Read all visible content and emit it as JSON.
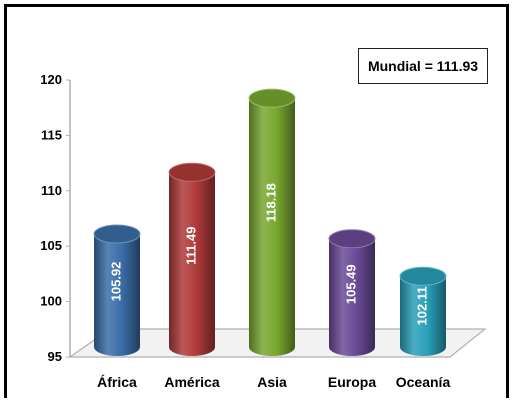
{
  "annotation": {
    "text": "Mundial = 111.93"
  },
  "chart_data": {
    "type": "bar",
    "categories": [
      "África",
      "América",
      "Asia",
      "Europa",
      "Oceanía"
    ],
    "values": [
      105.92,
      111.49,
      118.18,
      105.49,
      102.11
    ],
    "value_labels": [
      "105.92",
      "111.49",
      "118.18",
      "105.49",
      "102.11"
    ],
    "colors": [
      "#3a6ea8",
      "#b03a3a",
      "#78a830",
      "#6a4a98",
      "#2aa0b8"
    ],
    "ylim": [
      95,
      120
    ],
    "yticks": [
      95,
      100,
      105,
      110,
      115,
      120
    ],
    "title": "",
    "xlabel": "",
    "ylabel": "",
    "grid": false,
    "style": "3d-cylinder"
  }
}
